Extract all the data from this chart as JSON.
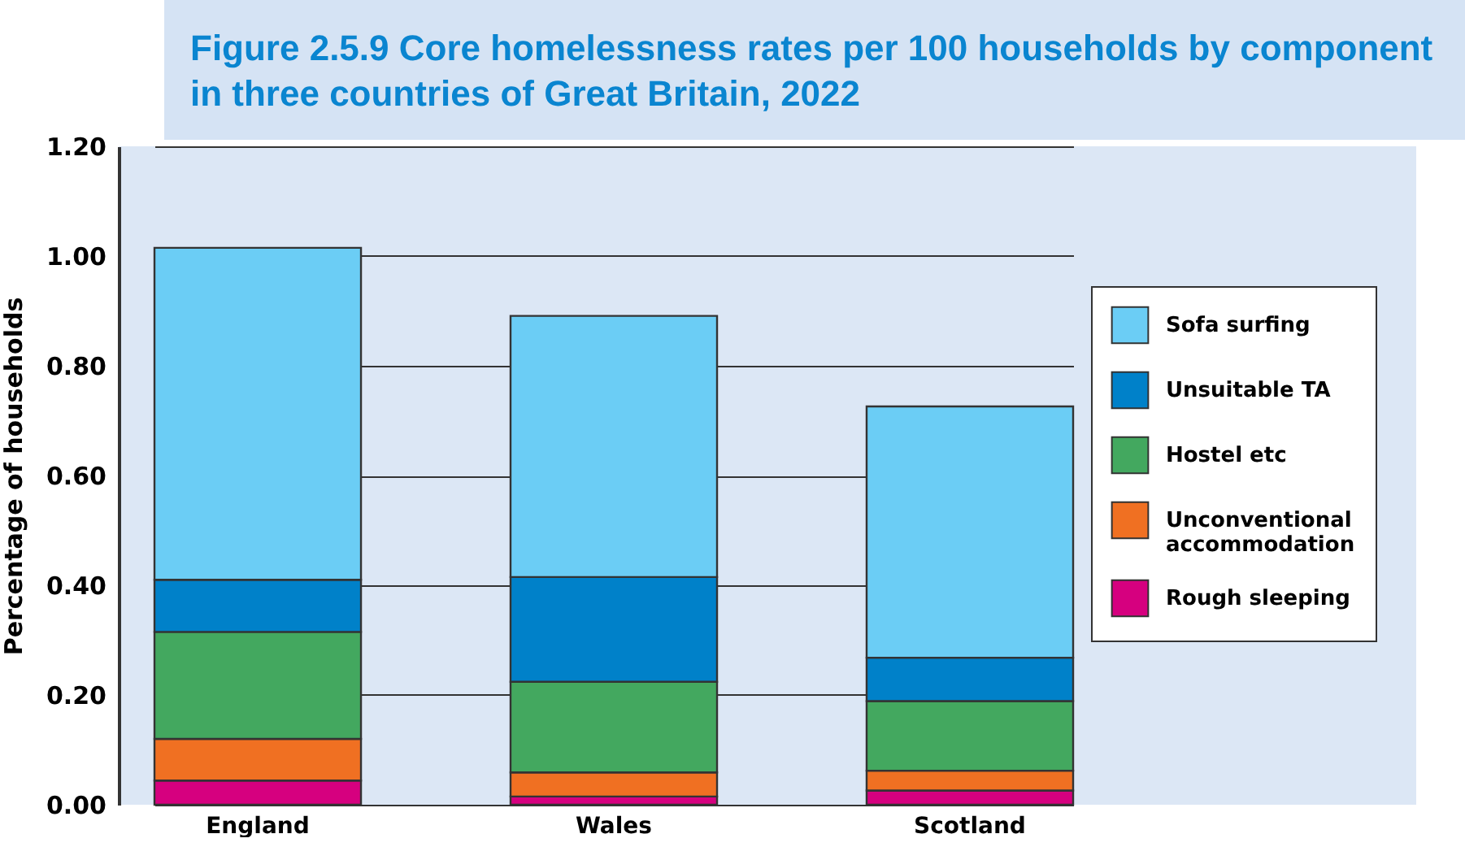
{
  "chart_data": {
    "type": "bar",
    "title": "Figure 2.5.9 Core homelessness rates per 100 households by component in three countries of Great Britain, 2022",
    "ylabel": "Percentage of households",
    "categories": [
      "England",
      "Wales",
      "Scotland"
    ],
    "stacked": true,
    "ylim": [
      0,
      1.2
    ],
    "yticks": [
      {
        "value": 0,
        "label": "0.00"
      },
      {
        "value": 0.2,
        "label": "0.20"
      },
      {
        "value": 0.4,
        "label": "0.40"
      },
      {
        "value": 0.6,
        "label": "0.60"
      },
      {
        "value": 0.8,
        "label": "0.80"
      },
      {
        "value": 1,
        "label": "1.00"
      },
      {
        "value": 1.2,
        "label": "1.20"
      }
    ],
    "grid": "y",
    "legend": "right",
    "series": [
      {
        "name": "Rough sleeping",
        "color": "#d6007f",
        "values": [
          0.044,
          0.015,
          0.026
        ]
      },
      {
        "name": "Unconventional accommodation",
        "color": "#f07022",
        "values": [
          0.076,
          0.044,
          0.036
        ]
      },
      {
        "name": "Hostel etc",
        "color": "#43a85f",
        "values": [
          0.195,
          0.165,
          0.127
        ]
      },
      {
        "name": "Unsuitable TA",
        "color": "#0081c9",
        "values": [
          0.095,
          0.191,
          0.079
        ]
      },
      {
        "name": "Sofa surfing",
        "color": "#6bcdf5",
        "values": [
          0.605,
          0.476,
          0.458
        ]
      }
    ]
  }
}
